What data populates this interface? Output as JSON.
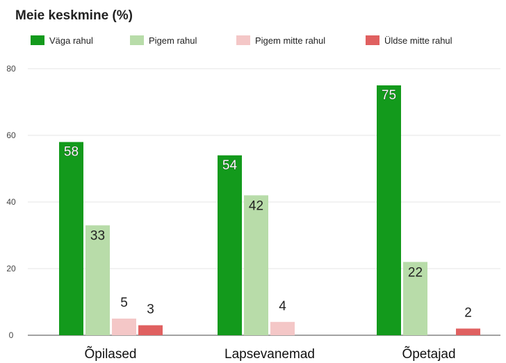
{
  "chart_data": {
    "type": "bar",
    "title": "Meie keskmine (%)",
    "categories": [
      "Õpilased",
      "Lapsevanemad",
      "Õpetajad"
    ],
    "series": [
      {
        "name": "Väga rahul",
        "color": "#139a1c",
        "values": [
          58,
          54,
          75
        ]
      },
      {
        "name": "Pigem rahul",
        "color": "#b8dca9",
        "values": [
          33,
          42,
          22
        ]
      },
      {
        "name": "Pigem mitte rahul",
        "color": "#f4c7c7",
        "values": [
          5,
          4,
          0
        ]
      },
      {
        "name": "Üldse mitte rahul",
        "color": "#e06060",
        "values": [
          3,
          0,
          2
        ]
      }
    ],
    "data_labels": [
      [
        "58",
        "54",
        "75"
      ],
      [
        "33",
        "42",
        "22"
      ],
      [
        "5",
        "4",
        ""
      ],
      [
        "3",
        "",
        "2"
      ]
    ],
    "yticks": [
      0,
      20,
      40,
      60,
      80
    ],
    "ytick_labels": [
      "0",
      "20",
      "40",
      "60",
      "80"
    ],
    "ylim": [
      0,
      80
    ],
    "grid": true,
    "legend": "top"
  }
}
